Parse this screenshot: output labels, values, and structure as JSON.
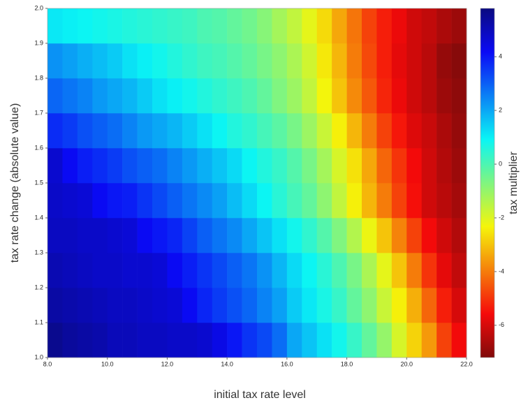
{
  "chart_data": {
    "type": "heatmap",
    "x_label": "initial tax rate level",
    "y_label": "tax rate change (absolute value)",
    "colorbar_label": "tax multiplier",
    "colormap": "jet_r",
    "x_bins": [
      8,
      8.5,
      9,
      9.5,
      10,
      10.5,
      11,
      11.5,
      12,
      12.5,
      13,
      13.5,
      14,
      14.5,
      15,
      15.5,
      16,
      16.5,
      17,
      17.5,
      18,
      18.5,
      19,
      19.5,
      20,
      20.5,
      21,
      21.5,
      22
    ],
    "y_bins": [
      1,
      1.1,
      1.2,
      1.3,
      1.4,
      1.5,
      1.6,
      1.7,
      1.8,
      1.9,
      2
    ],
    "values": [
      [
        5.6,
        5.4,
        5.3,
        5.2,
        5.0,
        5.0,
        4.9,
        4.9,
        4.8,
        4.8,
        4.7,
        4.4,
        4.0,
        3.6,
        3.3,
        2.8,
        2.0,
        1.6,
        1.2,
        0.8,
        0.3,
        -0.3,
        -1.0,
        -1.9,
        -2.8,
        -3.6,
        -4.8,
        -5.6
      ],
      [
        5.3,
        5.2,
        5.1,
        5.0,
        4.9,
        4.9,
        4.8,
        4.7,
        4.6,
        4.2,
        3.8,
        3.5,
        3.2,
        2.9,
        2.5,
        2.1,
        1.5,
        1.1,
        0.7,
        0.3,
        -0.3,
        -0.9,
        -1.7,
        -2.4,
        -3.3,
        -4.3,
        -5.3,
        -6.0
      ],
      [
        5.1,
        5.0,
        4.9,
        4.8,
        4.8,
        4.7,
        4.7,
        4.6,
        4.2,
        3.9,
        3.6,
        3.3,
        3.0,
        2.7,
        2.3,
        1.8,
        1.3,
        0.9,
        0.5,
        0,
        -0.6,
        -1.3,
        -2.1,
        -3.0,
        -4.0,
        -5.0,
        -5.8,
        -6.3
      ],
      [
        4.9,
        4.9,
        4.8,
        4.8,
        4.7,
        4.6,
        4.2,
        4.0,
        3.8,
        3.4,
        3.0,
        2.7,
        2.4,
        2.0,
        1.6,
        1.2,
        0.8,
        0.4,
        -0.1,
        -0.7,
        -1.4,
        -2.2,
        -3.0,
        -3.9,
        -4.8,
        -5.6,
        -6.1,
        -6.5
      ],
      [
        4.8,
        4.7,
        4.6,
        4.2,
        4.0,
        3.9,
        3.6,
        3.3,
        3.0,
        2.7,
        2.4,
        2.1,
        1.7,
        1.3,
        0.9,
        0.5,
        0.1,
        -0.3,
        -0.9,
        -1.6,
        -2.4,
        -3.2,
        -4.0,
        -4.8,
        -5.5,
        -6.1,
        -6.4,
        -6.7
      ],
      [
        4.7,
        4.2,
        3.9,
        3.7,
        3.5,
        3.2,
        3.0,
        2.8,
        2.5,
        2.2,
        1.9,
        1.6,
        1.3,
        0.9,
        0.6,
        0.3,
        -0.1,
        -0.6,
        -1.2,
        -1.9,
        -2.6,
        -3.4,
        -4.3,
        -5.0,
        -5.6,
        -6.1,
        -6.5,
        -6.8
      ],
      [
        3.7,
        3.5,
        3.2,
        3.0,
        2.8,
        2.5,
        2.2,
        2.0,
        1.8,
        1.5,
        1.2,
        0.9,
        0.6,
        0.4,
        0.1,
        -0.2,
        -0.6,
        -1.1,
        -1.7,
        -2.4,
        -3.2,
        -4.0,
        -4.8,
        -5.4,
        -5.9,
        -6.2,
        -6.6,
        -6.9
      ],
      [
        2.9,
        2.7,
        2.5,
        2.2,
        2.0,
        1.8,
        1.5,
        1.2,
        1.0,
        0.8,
        0.6,
        0.4,
        0.2,
        0,
        -0.3,
        -0.7,
        -1.1,
        -1.6,
        -2.3,
        -3.0,
        -3.8,
        -4.5,
        -5.2,
        -5.7,
        -6.1,
        -6.4,
        -6.8,
        -7.0
      ],
      [
        2.3,
        2.1,
        1.9,
        1.7,
        1.5,
        1.2,
        1.0,
        0.8,
        0.6,
        0.4,
        0.2,
        0.1,
        -0.1,
        -0.3,
        -0.6,
        -0.9,
        -1.3,
        -1.8,
        -2.5,
        -3.2,
        -4.0,
        -4.7,
        -5.3,
        -5.8,
        -6.1,
        -6.4,
        -6.9,
        -7.1
      ],
      [
        1.1,
        1.0,
        0.9,
        0.8,
        0.7,
        0.6,
        0.5,
        0.4,
        0.3,
        0.2,
        0,
        -0.1,
        -0.3,
        -0.5,
        -0.8,
        -1.2,
        -1.6,
        -2.1,
        -2.7,
        -3.4,
        -4.1,
        -4.8,
        -5.3,
        -5.7,
        -6.1,
        -6.3,
        -6.6,
        -6.8
      ]
    ],
    "xlim": [
      8,
      22
    ],
    "ylim": [
      1,
      2
    ],
    "zlim": [
      -7.2,
      5.8
    ],
    "xticks": [
      {
        "value": 8,
        "label": "8.0"
      },
      {
        "value": 10,
        "label": "10.0"
      },
      {
        "value": 12,
        "label": "12.0"
      },
      {
        "value": 14,
        "label": "14.0"
      },
      {
        "value": 16,
        "label": "16.0"
      },
      {
        "value": 18,
        "label": "18.0"
      },
      {
        "value": 20,
        "label": "20.0"
      },
      {
        "value": 22,
        "label": "22.0"
      }
    ],
    "yticks": [
      {
        "value": 1,
        "label": "1.0"
      },
      {
        "value": 1.1,
        "label": "1.1"
      },
      {
        "value": 1.2,
        "label": "1.2"
      },
      {
        "value": 1.3,
        "label": "1.3"
      },
      {
        "value": 1.4,
        "label": "1.4"
      },
      {
        "value": 1.5,
        "label": "1.5"
      },
      {
        "value": 1.6,
        "label": "1.6"
      },
      {
        "value": 1.7,
        "label": "1.7"
      },
      {
        "value": 1.8,
        "label": "1.8"
      },
      {
        "value": 1.9,
        "label": "1.9"
      },
      {
        "value": 2,
        "label": "2.0"
      }
    ],
    "zticks": [
      4,
      2,
      0,
      -2,
      -4,
      -6
    ]
  }
}
